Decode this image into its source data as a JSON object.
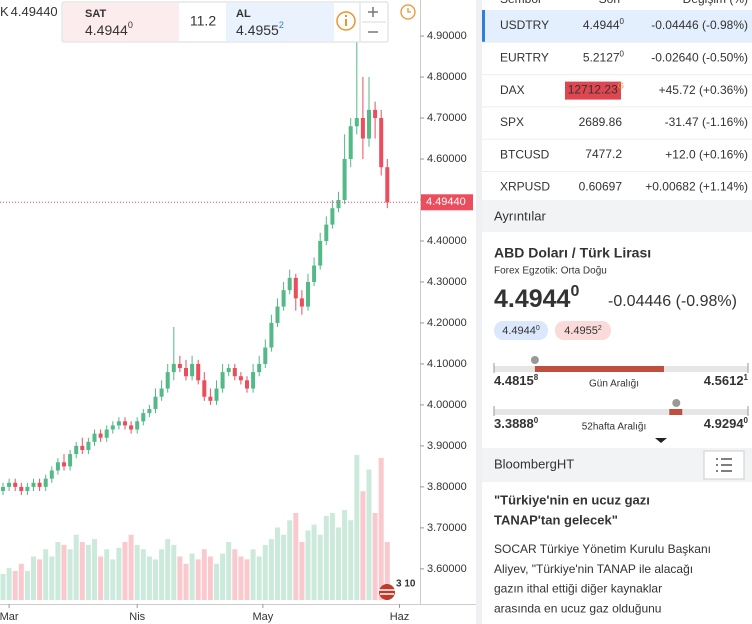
{
  "chart_data": {
    "type": "candlestick",
    "open": [
      3.79,
      3.8,
      3.81,
      3.8,
      3.79,
      3.8,
      3.81,
      3.8,
      3.82,
      3.84,
      3.86,
      3.85,
      3.88,
      3.9,
      3.89,
      3.91,
      3.93,
      3.92,
      3.94,
      3.95,
      3.96,
      3.95,
      3.94,
      3.96,
      3.98,
      3.99,
      4.02,
      4.04,
      4.08,
      4.1,
      4.09,
      4.07,
      4.1,
      4.06,
      4.02,
      4.01,
      4.04,
      4.08,
      4.09,
      4.07,
      4.06,
      4.04,
      4.08,
      4.1,
      4.14,
      4.2,
      4.24,
      4.28,
      4.31,
      4.26,
      4.24,
      4.3,
      4.34,
      4.4,
      4.44,
      4.48,
      4.5,
      4.6,
      4.68,
      4.7,
      4.65,
      4.72,
      4.7,
      4.58
    ],
    "high": [
      3.81,
      3.82,
      3.82,
      3.81,
      3.81,
      3.82,
      3.82,
      3.83,
      3.85,
      3.87,
      3.88,
      3.89,
      3.91,
      3.92,
      3.92,
      3.94,
      3.94,
      3.95,
      3.96,
      3.97,
      3.97,
      3.96,
      3.97,
      3.99,
      4.0,
      4.04,
      4.06,
      4.1,
      4.19,
      4.12,
      4.11,
      4.12,
      4.11,
      4.08,
      4.04,
      4.06,
      4.1,
      4.1,
      4.1,
      4.08,
      4.07,
      4.1,
      4.12,
      4.16,
      4.22,
      4.26,
      4.3,
      4.33,
      4.32,
      4.28,
      4.32,
      4.36,
      4.42,
      4.46,
      4.5,
      4.52,
      4.66,
      4.7,
      4.89,
      4.8,
      4.8,
      4.74,
      4.72,
      4.6
    ],
    "low": [
      3.78,
      3.79,
      3.79,
      3.78,
      3.78,
      3.79,
      3.79,
      3.79,
      3.81,
      3.83,
      3.84,
      3.84,
      3.87,
      3.88,
      3.88,
      3.9,
      3.91,
      3.91,
      3.93,
      3.94,
      3.94,
      3.93,
      3.93,
      3.95,
      3.97,
      3.98,
      4.01,
      4.03,
      4.06,
      4.08,
      4.06,
      4.06,
      4.05,
      4.01,
      4.0,
      4.0,
      4.03,
      4.07,
      4.06,
      4.05,
      4.03,
      4.03,
      4.07,
      4.09,
      4.13,
      4.19,
      4.23,
      4.27,
      4.23,
      4.22,
      4.23,
      4.29,
      4.33,
      4.39,
      4.43,
      4.47,
      4.49,
      4.58,
      4.66,
      4.6,
      4.63,
      4.65,
      4.56,
      4.48
    ],
    "close": [
      3.8,
      3.81,
      3.8,
      3.79,
      3.8,
      3.81,
      3.8,
      3.82,
      3.84,
      3.86,
      3.85,
      3.88,
      3.9,
      3.89,
      3.91,
      3.93,
      3.92,
      3.94,
      3.95,
      3.96,
      3.95,
      3.94,
      3.96,
      3.98,
      3.99,
      4.02,
      4.04,
      4.08,
      4.1,
      4.09,
      4.07,
      4.1,
      4.06,
      4.02,
      4.01,
      4.04,
      4.08,
      4.09,
      4.07,
      4.06,
      4.04,
      4.08,
      4.1,
      4.14,
      4.2,
      4.24,
      4.28,
      4.31,
      4.26,
      4.24,
      4.3,
      4.34,
      4.4,
      4.44,
      4.48,
      4.5,
      4.6,
      4.68,
      4.7,
      4.65,
      4.72,
      4.7,
      4.58,
      4.494
    ],
    "volume": [
      18,
      22,
      20,
      25,
      20,
      30,
      28,
      35,
      30,
      40,
      38,
      35,
      45,
      40,
      38,
      42,
      30,
      35,
      28,
      36,
      40,
      45,
      38,
      35,
      30,
      28,
      35,
      42,
      38,
      30,
      25,
      32,
      28,
      35,
      30,
      25,
      32,
      40,
      35,
      30,
      28,
      35,
      30,
      38,
      42,
      50,
      45,
      55,
      60,
      40,
      48,
      52,
      45,
      58,
      60,
      50,
      62,
      55,
      100,
      75,
      90,
      60,
      98,
      40
    ],
    "vlim": [
      0,
      100
    ],
    "ylim": [
      3.524,
      4.988
    ],
    "yticks": [
      {
        "value": 4.9,
        "label": "4.90000"
      },
      {
        "value": 4.8,
        "label": "4.80000"
      },
      {
        "value": 4.7,
        "label": "4.70000"
      },
      {
        "value": 4.6,
        "label": "4.60000"
      },
      {
        "value": 4.5,
        "label": "4.50000"
      },
      {
        "value": 4.4,
        "label": "4.40000"
      },
      {
        "value": 4.3,
        "label": "4.30000"
      },
      {
        "value": 4.2,
        "label": "4.20000"
      },
      {
        "value": 4.1,
        "label": "4.10000"
      },
      {
        "value": 4.0,
        "label": "4.00000"
      },
      {
        "value": 3.9,
        "label": "3.90000"
      },
      {
        "value": 3.8,
        "label": "3.80000"
      },
      {
        "value": 3.7,
        "label": "3.70000"
      },
      {
        "value": 3.6,
        "label": "3.60000"
      }
    ],
    "xticks": [
      {
        "value": 1,
        "label": "Mar"
      },
      {
        "value": 22,
        "label": "Nis"
      },
      {
        "value": 42.6,
        "label": "May"
      },
      {
        "value": 65,
        "label": "Haz"
      }
    ],
    "last_price": {
      "value": 4.4944,
      "label": "4.49440"
    },
    "up_color": "#53b987",
    "down_color": "#eb4d5c"
  },
  "toolbar": {
    "symbol_prefix": "K",
    "price": "4.49440",
    "sell": {
      "label": "SAT",
      "price": "4.4944",
      "sup": "0"
    },
    "spread": "11.2",
    "buy": {
      "label": "AL",
      "price": "4.4955",
      "sup": "2"
    },
    "badge": "3 10"
  },
  "watchlist": {
    "columns": [
      "Sembol",
      "Son",
      "Değişim (%)"
    ],
    "rows": [
      {
        "symbol": "USDTRY",
        "last": "4.4944",
        "sup": "0",
        "change": "-0.04446 (-0.98%)",
        "color": "#e0464f"
      },
      {
        "symbol": "EURTRY",
        "last": "5.2127",
        "sup": "0",
        "change": "-0.02640 (-0.50%)",
        "color": "#e0464f"
      },
      {
        "symbol": "DAX",
        "last": "12712.23",
        "sup": "G",
        "change": "+45.72 (+0.36%)",
        "color": "#3a9b5c",
        "bg": "#e0464f"
      },
      {
        "symbol": "SPX",
        "last": "2689.86",
        "change": "-31.47 (-1.16%)",
        "color": "#e0464f"
      },
      {
        "symbol": "BTCUSD",
        "last": "7477.2",
        "change": "+12.0 (+0.16%)",
        "color": "#3a9b5c"
      },
      {
        "symbol": "XRPUSD",
        "last": "0.60697",
        "change": "+0.00682 (+1.14%)",
        "color": "#3a9b5c"
      }
    ]
  },
  "details": {
    "section": "Ayrıntılar",
    "title": "ABD Doları / Türk Lirası",
    "subtitle": "Forex Egzotik: Orta Doğu",
    "price": {
      "main": "4.4944",
      "sup": "0",
      "value": 4.4944
    },
    "change": "-0.04446 (-0.98%)",
    "bid": {
      "main": "4.4944",
      "sup": "0"
    },
    "ask": {
      "main": "4.4955",
      "sup": "2"
    },
    "day_range": {
      "label": "Gün Aralığı",
      "low": {
        "value": 4.48158,
        "label": "4.4815",
        "sup": "8"
      },
      "high": {
        "value": 4.56121,
        "label": "4.5612",
        "sup": "1"
      }
    },
    "week52_range": {
      "label": "52hafta Aralığı",
      "low": {
        "value": 3.3888,
        "label": "3.3888",
        "sup": "0"
      },
      "high": {
        "value": 4.9294,
        "label": "4.9294",
        "sup": "0"
      }
    }
  },
  "news": {
    "source": "BloombergHT",
    "headline": [
      "\"Türkiye'nin en ucuz gazı",
      "TANAP'tan gelecek\""
    ],
    "body": [
      "SOCAR Türkiye Yönetim Kurulu Başkanı",
      "Aliyev, \"Türkiye'nin TANAP ile alacağı",
      "gazın ithal ettiği diğer kaynaklar",
      "arasında en ucuz gaz olduğunu"
    ]
  }
}
